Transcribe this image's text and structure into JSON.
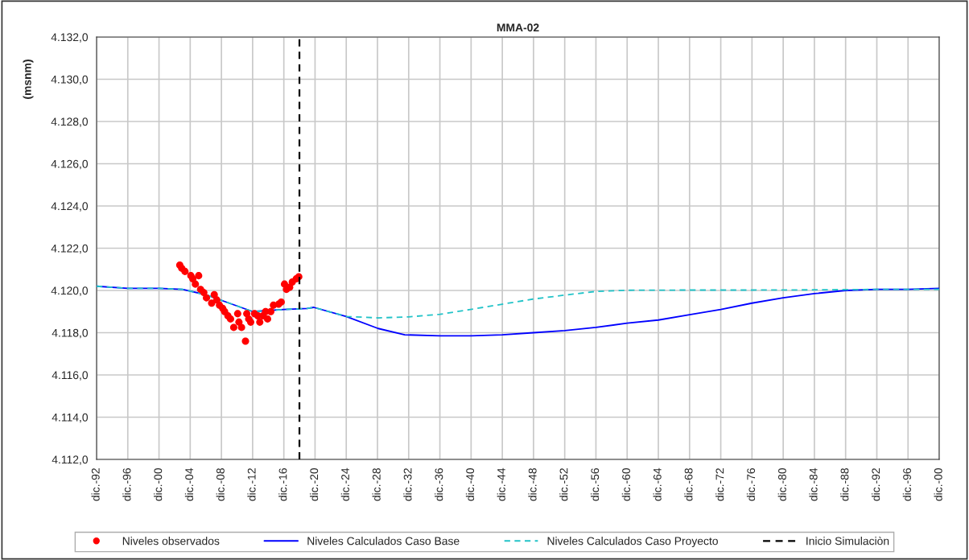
{
  "chart_data": {
    "type": "line",
    "title": "MMA-02",
    "ylabel": "(msnm)",
    "xlim": [
      "1992-12",
      "2100-12"
    ],
    "xticks": [
      {
        "value": "1992-12",
        "label": "dic.-92"
      },
      {
        "value": "1996-12",
        "label": "dic.-96"
      },
      {
        "value": "2000-12",
        "label": "dic.-00"
      },
      {
        "value": "2004-12",
        "label": "dic.-04"
      },
      {
        "value": "2008-12",
        "label": "dic.-08"
      },
      {
        "value": "2012-12",
        "label": "dic.-12"
      },
      {
        "value": "2016-12",
        "label": "dic.-16"
      },
      {
        "value": "2020-12",
        "label": "dic.-20"
      },
      {
        "value": "2024-12",
        "label": "dic.-24"
      },
      {
        "value": "2028-12",
        "label": "dic.-28"
      },
      {
        "value": "2032-12",
        "label": "dic.-32"
      },
      {
        "value": "2036-12",
        "label": "dic.-36"
      },
      {
        "value": "2040-12",
        "label": "dic.-40"
      },
      {
        "value": "2044-12",
        "label": "dic.-44"
      },
      {
        "value": "2048-12",
        "label": "dic.-48"
      },
      {
        "value": "2052-12",
        "label": "dic.-52"
      },
      {
        "value": "2056-12",
        "label": "dic.-56"
      },
      {
        "value": "2060-12",
        "label": "dic.-60"
      },
      {
        "value": "2064-12",
        "label": "dic.-64"
      },
      {
        "value": "2068-12",
        "label": "dic.-68"
      },
      {
        "value": "2072-12",
        "label": "dic.-72"
      },
      {
        "value": "2076-12",
        "label": "dic.-76"
      },
      {
        "value": "2080-12",
        "label": "dic.-80"
      },
      {
        "value": "2084-12",
        "label": "dic.-84"
      },
      {
        "value": "2088-12",
        "label": "dic.-88"
      },
      {
        "value": "2092-12",
        "label": "dic.-92"
      },
      {
        "value": "2096-12",
        "label": "dic.-96"
      },
      {
        "value": "2100-12",
        "label": "dic.-00"
      }
    ],
    "ylim": [
      4112,
      4132
    ],
    "yticks": [
      {
        "value": 4112,
        "label": "4.112,0"
      },
      {
        "value": 4114,
        "label": "4.114,0"
      },
      {
        "value": 4116,
        "label": "4.116,0"
      },
      {
        "value": 4118,
        "label": "4.118,0"
      },
      {
        "value": 4120,
        "label": "4.120,0"
      },
      {
        "value": 4122,
        "label": "4.122,0"
      },
      {
        "value": 4124,
        "label": "4.124,0"
      },
      {
        "value": 4126,
        "label": "4.126,0"
      },
      {
        "value": 4128,
        "label": "4.128,0"
      },
      {
        "value": 4130,
        "label": "4.130,0"
      },
      {
        "value": 4132,
        "label": "4.132,0"
      }
    ],
    "grid": true,
    "legend": "bottom",
    "series": [
      {
        "name": "Niveles observados",
        "type": "scatter",
        "marker": "circle",
        "color": "#ff0000",
        "x": [
          "2003-08",
          "2003-11",
          "2004-04",
          "2005-01",
          "2005-04",
          "2005-08",
          "2006-01",
          "2006-04",
          "2006-09",
          "2007-01",
          "2007-09",
          "2008-01",
          "2008-05",
          "2008-09",
          "2009-02",
          "2009-05",
          "2009-10",
          "2010-02",
          "2010-07",
          "2011-01",
          "2011-03",
          "2011-07",
          "2012-01",
          "2012-03",
          "2012-06",
          "2012-09",
          "2013-03",
          "2013-08",
          "2013-11",
          "2014-04",
          "2014-08",
          "2014-11",
          "2015-04",
          "2015-08",
          "2016-04",
          "2016-08",
          "2017-01",
          "2017-04",
          "2017-09",
          "2018-01",
          "2018-07",
          "2018-11"
        ],
        "values": [
          4121.2,
          4121.05,
          4120.9,
          4120.7,
          4120.55,
          4120.3,
          4120.7,
          4120.05,
          4119.9,
          4119.65,
          4119.4,
          4119.8,
          4119.55,
          4119.3,
          4119.15,
          4119.0,
          4118.8,
          4118.65,
          4118.25,
          4118.9,
          4118.5,
          4118.25,
          4117.6,
          4118.9,
          4118.65,
          4118.5,
          4118.9,
          4118.8,
          4118.5,
          4118.8,
          4119.0,
          4118.65,
          4119.0,
          4119.3,
          4119.35,
          4119.45,
          4120.3,
          4120.05,
          4120.15,
          4120.4,
          4120.55,
          4120.65
        ]
      },
      {
        "name": "Niveles Calculados Caso Base",
        "line_style": "solid",
        "color": "#0000ff",
        "x": [
          "1992-12",
          "1996-12",
          "2000-12",
          "2003-12",
          "2006-12",
          "2009-12",
          "2012-12",
          "2016-12",
          "2019-12",
          "2020-10",
          "2024-12",
          "2029-01",
          "2032-06",
          "2036-12",
          "2040-12",
          "2044-12",
          "2048-12",
          "2052-12",
          "2056-12",
          "2060-12",
          "2064-12",
          "2068-12",
          "2072-12",
          "2076-12",
          "2080-12",
          "2084-12",
          "2088-12",
          "2092-12",
          "2096-12",
          "2100-12"
        ],
        "values": [
          4120.2,
          4120.1,
          4120.1,
          4120.05,
          4119.8,
          4119.4,
          4119.0,
          4119.1,
          4119.15,
          4119.2,
          4118.77,
          4118.2,
          4117.9,
          4117.85,
          4117.85,
          4117.9,
          4118.0,
          4118.1,
          4118.25,
          4118.45,
          4118.6,
          4118.85,
          4119.1,
          4119.4,
          4119.65,
          4119.85,
          4120.0,
          4120.05,
          4120.05,
          4120.1
        ]
      },
      {
        "name": "Niveles Calculados Caso Proyecto",
        "line_style": "dashed",
        "color": "#22c3c8",
        "x": [
          "1992-12",
          "1996-12",
          "2000-12",
          "2003-12",
          "2006-12",
          "2009-12",
          "2012-12",
          "2016-12",
          "2019-12",
          "2020-10",
          "2024-12",
          "2029-01",
          "2032-12",
          "2036-12",
          "2040-09",
          "2044-10",
          "2048-11",
          "2052-12",
          "2056-11",
          "2060-12",
          "2068-12",
          "2076-12",
          "2084-12",
          "2092-12",
          "2100-12"
        ],
        "values": [
          4120.2,
          4120.1,
          4120.1,
          4120.05,
          4119.8,
          4119.4,
          4119.0,
          4119.1,
          4119.15,
          4119.2,
          4118.77,
          4118.7,
          4118.75,
          4118.87,
          4119.09,
          4119.34,
          4119.59,
          4119.78,
          4119.95,
          4120.01,
          4120.02,
          4120.02,
          4120.03,
          4120.05,
          4120.05
        ]
      }
    ],
    "ref_lines": [
      {
        "axis": "x",
        "value": "2018-12",
        "label": "Inicio Simulaciòn",
        "color": "#000000",
        "line_style": "dashed"
      }
    ]
  }
}
